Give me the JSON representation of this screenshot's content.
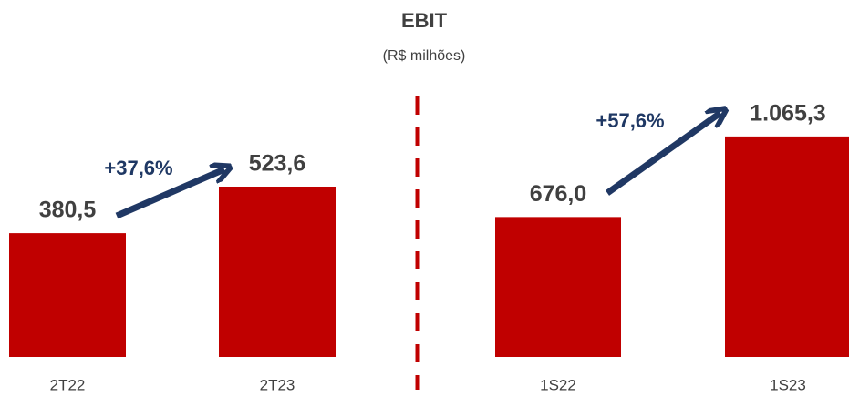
{
  "title": "EBIT",
  "subtitle": "(R$ milhões)",
  "chart_data": [
    {
      "type": "bar",
      "categories": [
        "2T22",
        "2T23"
      ],
      "values": [
        380.5,
        523.6
      ],
      "value_labels": [
        "380,5",
        "523,6"
      ],
      "color": "#c00000",
      "ylim": [
        0,
        700
      ],
      "annotation": "+37,6%"
    },
    {
      "type": "bar",
      "categories": [
        "1S22",
        "1S23"
      ],
      "values": [
        676.0,
        1065.3
      ],
      "value_labels": [
        "676,0",
        "1.065,3"
      ],
      "color": "#c00000",
      "ylim": [
        0,
        1100
      ],
      "annotation": "+57,6%"
    }
  ]
}
